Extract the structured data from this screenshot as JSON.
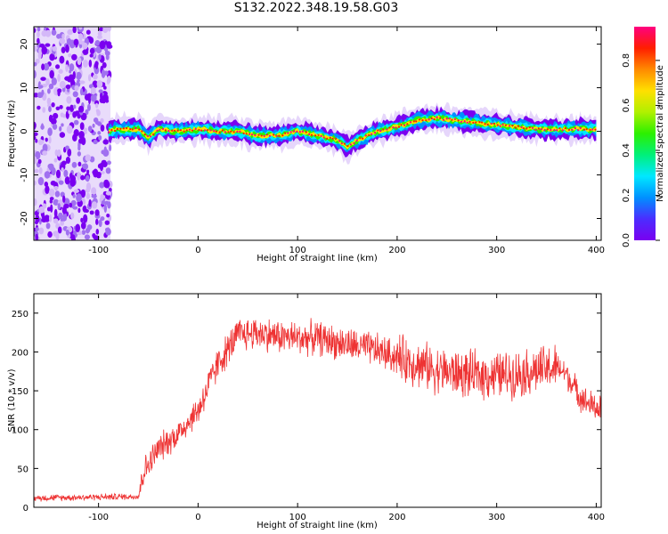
{
  "title": "S132.2022.348.19.58.G03",
  "colors": {
    "snr_line": "#ee3333",
    "axis": "#000000",
    "colormap": [
      "#7a00f0",
      "#4b2dff",
      "#0090ff",
      "#00e8ff",
      "#00f07a",
      "#2cf000",
      "#b0f000",
      "#ffe000",
      "#ff8a00",
      "#ff1e00",
      "#ff0080"
    ]
  },
  "chart_data": [
    {
      "type": "heatmap",
      "xlabel": "Height of straight line (km)",
      "ylabel": "Frequency (Hz)",
      "xlim": [
        -165,
        405
      ],
      "ylim": [
        -25,
        24
      ],
      "xticks": [
        -100,
        0,
        100,
        200,
        300,
        400
      ],
      "yticks": [
        -20,
        -10,
        0,
        10,
        20
      ],
      "grid": false,
      "noise_region_x": [
        -165,
        -88
      ],
      "trace": {
        "x": [
          -90,
          -80,
          -60,
          -50,
          -40,
          -20,
          0,
          20,
          40,
          60,
          80,
          100,
          120,
          140,
          150,
          160,
          180,
          200,
          220,
          240,
          260,
          280,
          300,
          320,
          340,
          360,
          380,
          400
        ],
        "y": [
          0,
          0.5,
          0.5,
          -1.5,
          0.5,
          0,
          0.5,
          0,
          0,
          -1,
          -1,
          0,
          -1,
          -2,
          -3.5,
          -2,
          0,
          1,
          2.5,
          3,
          2.5,
          2,
          1.5,
          1,
          0.5,
          0.5,
          0.5,
          0.5
        ]
      },
      "colorbar": {
        "label": "Normalized spectral amplitude",
        "range": [
          0.0,
          0.95
        ],
        "ticks": [
          "0.0",
          "0.2",
          "0.4",
          "0.6",
          "0.8"
        ]
      }
    },
    {
      "type": "line",
      "xlabel": "Height of straight line (km)",
      "ylabel": "SNR (10 * v/v)",
      "xlim": [
        -165,
        405
      ],
      "ylim": [
        0,
        275
      ],
      "xticks": [
        -100,
        0,
        100,
        200,
        300,
        400
      ],
      "yticks": [
        0,
        50,
        100,
        150,
        200,
        250
      ],
      "grid": false,
      "series": [
        {
          "x": [
            -165,
            -60,
            -55,
            -40,
            -20,
            0,
            20,
            40,
            60,
            80,
            100,
            120,
            140,
            160,
            180,
            200,
            220,
            240,
            260,
            280,
            300,
            320,
            340,
            360,
            370,
            380,
            390,
            405
          ],
          "y": [
            12,
            14,
            45,
            75,
            95,
            125,
            185,
            222,
            225,
            220,
            218,
            218,
            212,
            207,
            202,
            193,
            185,
            177,
            172,
            170,
            170,
            172,
            176,
            180,
            172,
            150,
            135,
            125
          ]
        }
      ]
    }
  ]
}
